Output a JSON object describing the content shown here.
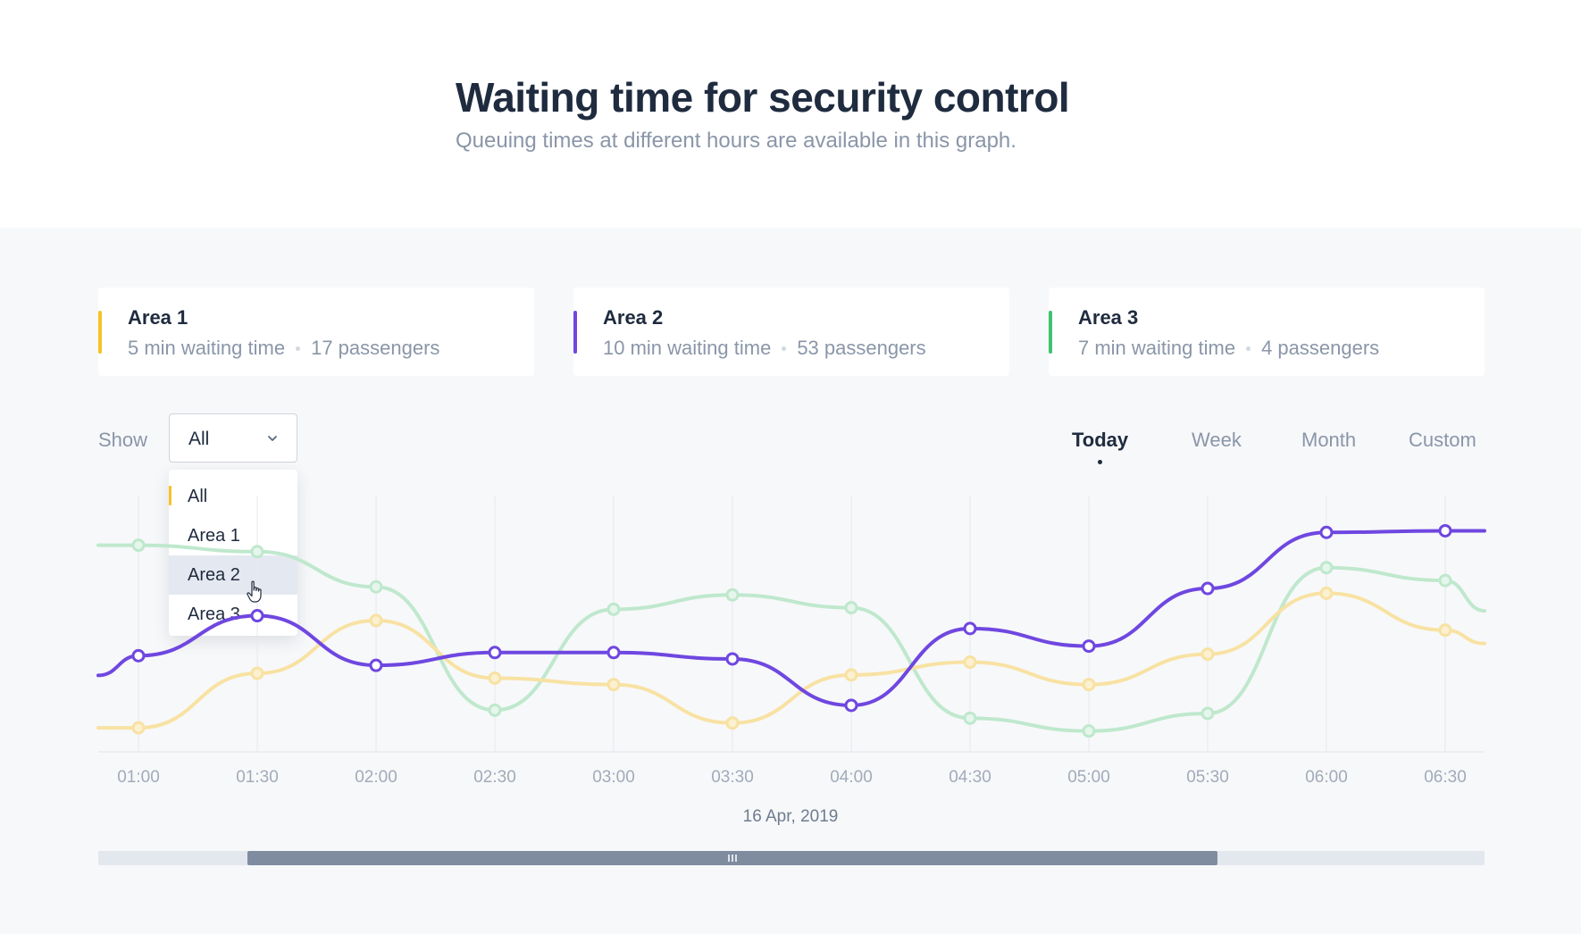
{
  "header": {
    "title": "Waiting time for security control",
    "subtitle": "Queuing times at different hours are available in this graph."
  },
  "cards": [
    {
      "name": "Area 1",
      "waiting": "5 min waiting time",
      "passengers": "17 passengers",
      "color": "#f6c324"
    },
    {
      "name": "Area 2",
      "waiting": "10 min waiting time",
      "passengers": "53 passengers",
      "color": "#6f47e0"
    },
    {
      "name": "Area 3",
      "waiting": "7 min waiting time",
      "passengers": "4 passengers",
      "color": "#3cc46f"
    }
  ],
  "filter": {
    "label": "Show",
    "selected": "All",
    "options": [
      "All",
      "Area 1",
      "Area 2",
      "Area 3"
    ],
    "hovered": "Area 2",
    "icon": "chevron-down-icon"
  },
  "tabs": [
    {
      "label": "Today",
      "active": true
    },
    {
      "label": "Week",
      "active": false
    },
    {
      "label": "Month",
      "active": false
    },
    {
      "label": "Custom",
      "active": false
    }
  ],
  "chart_data": {
    "type": "line",
    "categories": [
      "01:00",
      "01:30",
      "02:00",
      "02:30",
      "03:00",
      "03:30",
      "04:00",
      "04:30",
      "05:00",
      "05:30",
      "06:00",
      "06:30"
    ],
    "series": [
      {
        "name": "Area 1",
        "color": "#f6c324",
        "values": [
          1.5,
          4.9,
          8.2,
          4.6,
          4.2,
          1.8,
          4.8,
          5.6,
          4.2,
          6.1,
          9.9,
          7.6
        ]
      },
      {
        "name": "Area 2",
        "color": "#6f47e0",
        "values": [
          6.0,
          8.5,
          5.4,
          6.2,
          6.2,
          5.8,
          2.9,
          7.7,
          6.6,
          10.2,
          13.7,
          13.8
        ]
      },
      {
        "name": "Area 3",
        "color": "#3cc46f",
        "values": [
          12.9,
          12.5,
          10.3,
          2.6,
          8.9,
          9.8,
          9.0,
          2.1,
          1.3,
          2.4,
          11.5,
          10.7
        ]
      }
    ],
    "ylim": [
      0,
      16
    ],
    "grid": true,
    "date": "16 Apr, 2019"
  },
  "scrollbar": {
    "position": 0.1,
    "visible_fraction": 0.7
  }
}
